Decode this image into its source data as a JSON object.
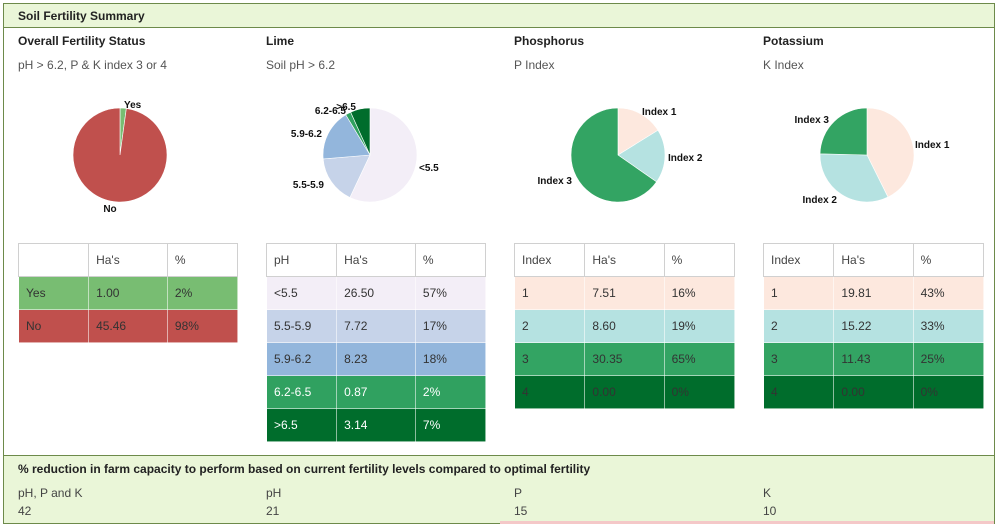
{
  "panel_title": "Soil Fertility Summary",
  "sections": [
    {
      "title": "Overall Fertility Status",
      "subtitle": "pH > 6.2, P & K index 3 or 4"
    },
    {
      "title": "Lime",
      "subtitle": "Soil pH > 6.2"
    },
    {
      "title": "Phosphorus",
      "subtitle": "P Index"
    },
    {
      "title": "Potassium",
      "subtitle": "K Index"
    }
  ],
  "tables": [
    {
      "headers": [
        "",
        "Ha's",
        "%"
      ],
      "rows": [
        [
          "Yes",
          "1.00",
          "2%"
        ],
        [
          "No",
          "45.46",
          "98%"
        ]
      ],
      "colors": [
        "#78bd72",
        "#c0504d"
      ],
      "text_colors": [
        "#333",
        "#333"
      ]
    },
    {
      "headers": [
        "pH",
        "Ha's",
        "%"
      ],
      "rows": [
        [
          "<5.5",
          "26.50",
          "57%"
        ],
        [
          "5.5-5.9",
          "7.72",
          "17%"
        ],
        [
          "5.9-6.2",
          "8.23",
          "18%"
        ],
        [
          "6.2-6.5",
          "0.87",
          "2%"
        ],
        [
          ">6.5",
          "3.14",
          "7%"
        ]
      ],
      "colors": [
        "#f3eef7",
        "#c6d3e9",
        "#93b6dc",
        "#30a160",
        "#006d2c"
      ],
      "text_colors": [
        "#333",
        "#333",
        "#333",
        "#fff",
        "#fff"
      ]
    },
    {
      "headers": [
        "Index",
        "Ha's",
        "%"
      ],
      "rows": [
        [
          "1",
          "7.51",
          "16%"
        ],
        [
          "2",
          "8.60",
          "19%"
        ],
        [
          "3",
          "30.35",
          "65%"
        ],
        [
          "4",
          "0.00",
          "0%"
        ]
      ],
      "colors": [
        "#fde8de",
        "#b5e2e1",
        "#33a463",
        "#006d2c"
      ],
      "text_colors": [
        "#333",
        "#333",
        "#333",
        "#333"
      ]
    },
    {
      "headers": [
        "Index",
        "Ha's",
        "%"
      ],
      "rows": [
        [
          "1",
          "19.81",
          "43%"
        ],
        [
          "2",
          "15.22",
          "33%"
        ],
        [
          "3",
          "11.43",
          "25%"
        ],
        [
          "4",
          "0.00",
          "0%"
        ]
      ],
      "colors": [
        "#fde8de",
        "#b5e2e1",
        "#33a463",
        "#006d2c"
      ],
      "text_colors": [
        "#333",
        "#333",
        "#333",
        "#333"
      ]
    }
  ],
  "chart_data": [
    {
      "type": "pie",
      "title": "Overall Fertility Status",
      "categories": [
        "Yes",
        "No"
      ],
      "values": [
        1.0,
        45.46
      ],
      "colors": [
        "#78bd72",
        "#c0504d"
      ]
    },
    {
      "type": "pie",
      "title": "Lime",
      "categories": [
        "<5.5",
        "5.5-5.9",
        "5.9-6.2",
        "6.2-6.5",
        ">6.5"
      ],
      "values": [
        26.5,
        7.72,
        8.23,
        0.87,
        3.14
      ],
      "colors": [
        "#f3eef7",
        "#c6d3e9",
        "#93b6dc",
        "#30a160",
        "#006d2c"
      ]
    },
    {
      "type": "pie",
      "title": "Phosphorus",
      "categories": [
        "Index 1",
        "Index 2",
        "Index 3"
      ],
      "values": [
        7.51,
        8.6,
        30.35
      ],
      "colors": [
        "#fde8de",
        "#b5e2e1",
        "#33a463"
      ]
    },
    {
      "type": "pie",
      "title": "Potassium",
      "categories": [
        "Index 1",
        "Index 2",
        "Index 3"
      ],
      "values": [
        19.81,
        15.22,
        11.43
      ],
      "colors": [
        "#fde8de",
        "#b5e2e1",
        "#33a463"
      ]
    }
  ],
  "footer": {
    "title": "% reduction in farm capacity to perform based on current fertility levels compared to optimal fertility",
    "items": [
      {
        "label": "pH, P and K",
        "value": "42"
      },
      {
        "label": "pH",
        "value": "21"
      },
      {
        "label": "P",
        "value": "15"
      },
      {
        "label": "K",
        "value": "10"
      }
    ]
  }
}
